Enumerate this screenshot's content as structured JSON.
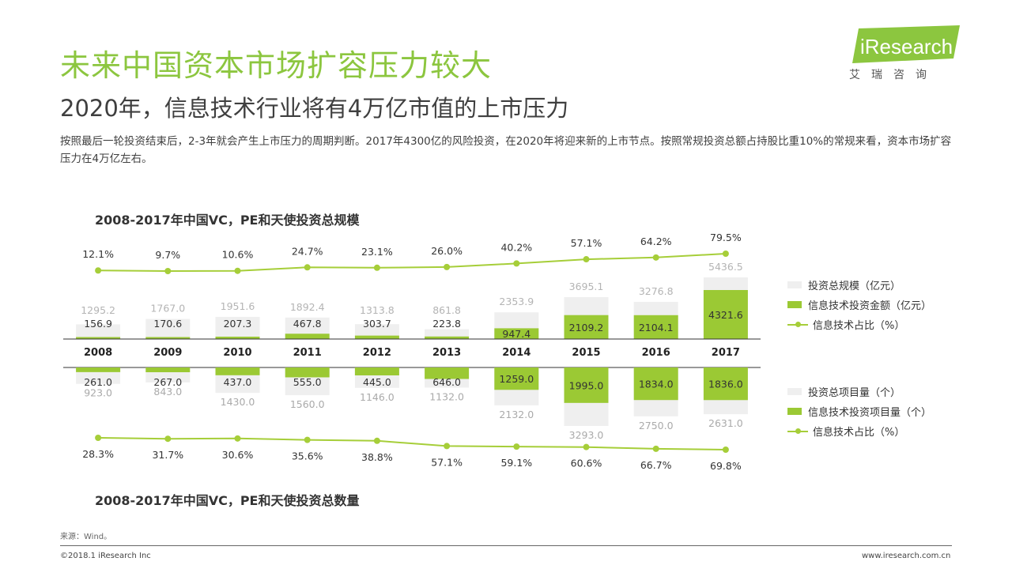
{
  "title": "未来中国资本市场扩容压力较大",
  "subtitle": "2020年，信息技术行业将有4万亿市值的上市压力",
  "summary": "按照最后一轮投资结束后，2-3年就会产生上市压力的周期判断。2017年4300亿的风险投资，在2020年将迎来新的上市节点。按照常规投资总额占持股比重10%的常规来看，资本市场扩容压力在4万亿左右。",
  "logo": {
    "text": "iResearch",
    "cn": "艾瑞咨询"
  },
  "source": "来源：Wind。",
  "copyright": "©2018.1 iResearch Inc",
  "website": "www.iresearch.com.cn",
  "colors": {
    "accent": "#8cc63f",
    "bar_green": "#9bc934",
    "bar_gray": "#efefef",
    "line": "#a6ce39"
  },
  "legend_top": [
    "投资总规模（亿元）",
    "信息技术投资金额（亿元）",
    "信息技术占比（%）"
  ],
  "legend_bottom": [
    "投资总项目量（个）",
    "信息技术投资项目量（个）",
    "信息技术占比（%）"
  ],
  "chart_data": [
    {
      "type": "bar",
      "title": "2008-2017年中国VC，PE和天使投资总规模",
      "categories": [
        "2008",
        "2009",
        "2010",
        "2011",
        "2012",
        "2013",
        "2014",
        "2015",
        "2016",
        "2017"
      ],
      "series": [
        {
          "name": "投资总规模（亿元）",
          "values": [
            1295.2,
            1767.0,
            1951.6,
            1892.4,
            1313.8,
            861.8,
            2353.9,
            3695.1,
            3276.8,
            5436.5
          ]
        },
        {
          "name": "信息技术投资金额（亿元）",
          "values": [
            156.9,
            170.6,
            207.3,
            467.8,
            303.7,
            223.8,
            947.4,
            2109.2,
            2104.1,
            4321.6
          ]
        },
        {
          "name": "信息技术占比（%）",
          "values": [
            12.1,
            9.7,
            10.6,
            24.7,
            23.1,
            26.0,
            40.2,
            57.1,
            64.2,
            79.5
          ]
        }
      ],
      "ratio_labels": [
        "12.1%",
        "9.7%",
        "10.6%",
        "24.7%",
        "23.1%",
        "26.0%",
        "40.2%",
        "57.1%",
        "64.2%",
        "79.5%"
      ],
      "total_labels": [
        "1295.2",
        "1767.0",
        "1951.6",
        "1892.4",
        "1313.8",
        "861.8",
        "2353.9",
        "3695.1",
        "3276.8",
        "5436.5"
      ],
      "it_labels": [
        "156.9",
        "170.6",
        "207.3",
        "467.8",
        "303.7",
        "223.8",
        "947.4",
        "2109.2",
        "2104.1",
        "4321.6"
      ]
    },
    {
      "type": "bar",
      "title": "2008-2017年中国VC，PE和天使投资总数量",
      "categories": [
        "2008",
        "2009",
        "2010",
        "2011",
        "2012",
        "2013",
        "2014",
        "2015",
        "2016",
        "2017"
      ],
      "series": [
        {
          "name": "投资总项目量（个）",
          "values": [
            923.0,
            843.0,
            1430.0,
            1560.0,
            1146.0,
            1132.0,
            2132.0,
            3293.0,
            2750.0,
            2631.0
          ]
        },
        {
          "name": "信息技术投资项目量（个）",
          "values": [
            261.0,
            267.0,
            437.0,
            555.0,
            445.0,
            646.0,
            1259.0,
            1995.0,
            1834.0,
            1836.0
          ]
        },
        {
          "name": "信息技术占比（%）",
          "values": [
            28.3,
            31.7,
            30.6,
            35.6,
            38.8,
            57.1,
            59.1,
            60.6,
            66.7,
            69.8
          ]
        }
      ],
      "ratio_labels": [
        "28.3%",
        "31.7%",
        "30.6%",
        "35.6%",
        "38.8%",
        "57.1%",
        "59.1%",
        "60.6%",
        "66.7%",
        "69.8%"
      ],
      "total_labels": [
        "923.0",
        "843.0",
        "1430.0",
        "1560.0",
        "1146.0",
        "1132.0",
        "2132.0",
        "3293.0",
        "2750.0",
        "2631.0"
      ],
      "it_labels": [
        "261.0",
        "267.0",
        "437.0",
        "555.0",
        "445.0",
        "646.0",
        "1259.0",
        "1995.0",
        "1834.0",
        "1836.0"
      ]
    }
  ]
}
